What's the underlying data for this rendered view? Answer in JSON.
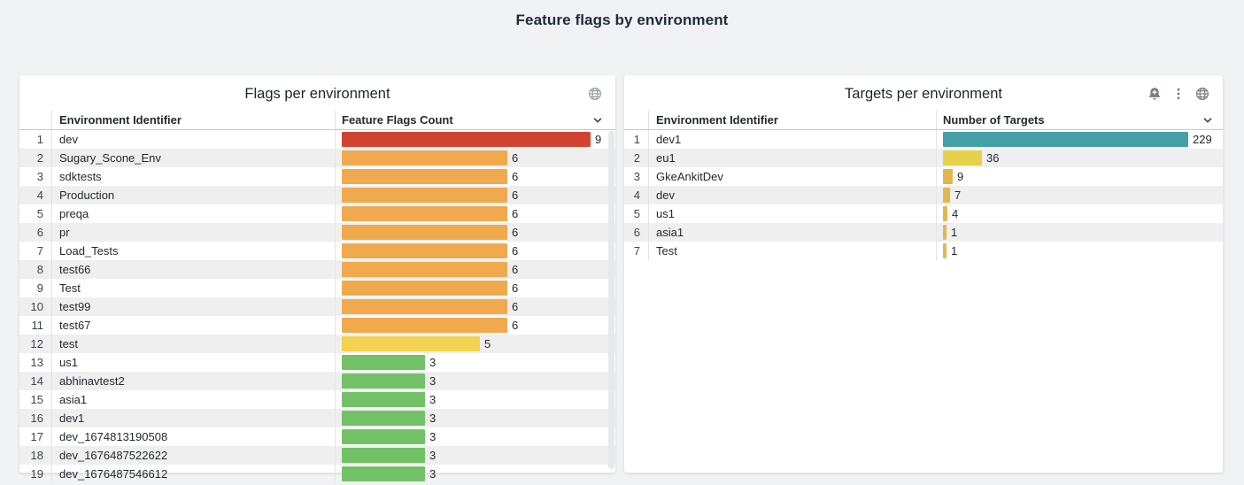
{
  "page": {
    "title": "Feature flags by environment",
    "background_color": "#f1f2f4"
  },
  "panels": [
    {
      "id": "flags",
      "title": "Flags per environment",
      "icons": [
        "globe-icon"
      ],
      "columns": [
        "Environment Identifier",
        "Feature Flags Count"
      ],
      "sort_icon": "chevron-down-icon",
      "max": 9,
      "has_scrollbar": true,
      "rows": [
        {
          "index": 1,
          "name": "dev",
          "value": 9,
          "color": "#d24431"
        },
        {
          "index": 2,
          "name": "Sugary_Scone_Env",
          "value": 6,
          "color": "#f1a94e"
        },
        {
          "index": 3,
          "name": "sdktests",
          "value": 6,
          "color": "#f1a94e"
        },
        {
          "index": 4,
          "name": "Production",
          "value": 6,
          "color": "#f1a94e"
        },
        {
          "index": 5,
          "name": "preqa",
          "value": 6,
          "color": "#f1a94e"
        },
        {
          "index": 6,
          "name": "pr",
          "value": 6,
          "color": "#f1a94e"
        },
        {
          "index": 7,
          "name": "Load_Tests",
          "value": 6,
          "color": "#f1a94e"
        },
        {
          "index": 8,
          "name": "test66",
          "value": 6,
          "color": "#f1a94e"
        },
        {
          "index": 9,
          "name": "Test",
          "value": 6,
          "color": "#f1a94e"
        },
        {
          "index": 10,
          "name": "test99",
          "value": 6,
          "color": "#f1a94e"
        },
        {
          "index": 11,
          "name": "test67",
          "value": 6,
          "color": "#f1a94e"
        },
        {
          "index": 12,
          "name": "test",
          "value": 5,
          "color": "#f3d24f"
        },
        {
          "index": 13,
          "name": "us1",
          "value": 3,
          "color": "#73c167"
        },
        {
          "index": 14,
          "name": "abhinavtest2",
          "value": 3,
          "color": "#73c167"
        },
        {
          "index": 15,
          "name": "asia1",
          "value": 3,
          "color": "#73c167"
        },
        {
          "index": 16,
          "name": "dev1",
          "value": 3,
          "color": "#73c167"
        },
        {
          "index": 17,
          "name": "dev_1674813190508",
          "value": 3,
          "color": "#73c167"
        },
        {
          "index": 18,
          "name": "dev_1676487522622",
          "value": 3,
          "color": "#73c167"
        },
        {
          "index": 19,
          "name": "dev_1676487546612",
          "value": 3,
          "color": "#73c167"
        }
      ]
    },
    {
      "id": "targets",
      "title": "Targets per environment",
      "icons": [
        "bell-plus-icon",
        "kebab-menu-icon",
        "globe-icon"
      ],
      "columns": [
        "Environment Identifier",
        "Number of Targets"
      ],
      "sort_icon": "chevron-down-icon",
      "max": 229,
      "has_scrollbar": false,
      "rows": [
        {
          "index": 1,
          "name": "dev1",
          "value": 229,
          "color": "#459fa6"
        },
        {
          "index": 2,
          "name": "eu1",
          "value": 36,
          "color": "#e6d24a"
        },
        {
          "index": 3,
          "name": "GkeAnkitDev",
          "value": 9,
          "color": "#e4b64e"
        },
        {
          "index": 4,
          "name": "dev",
          "value": 7,
          "color": "#e4b64e"
        },
        {
          "index": 5,
          "name": "us1",
          "value": 4,
          "color": "#e4b64e"
        },
        {
          "index": 6,
          "name": "asia1",
          "value": 1,
          "color": "#e4b64e"
        },
        {
          "index": 7,
          "name": "Test",
          "value": 1,
          "color": "#e4b64e"
        }
      ]
    }
  ],
  "chart_data": [
    {
      "type": "bar",
      "orientation": "horizontal",
      "title": "Flags per environment",
      "xlabel": "Feature Flags Count",
      "categories": [
        "dev",
        "Sugary_Scone_Env",
        "sdktests",
        "Production",
        "preqa",
        "pr",
        "Load_Tests",
        "test66",
        "Test",
        "test99",
        "test67",
        "test",
        "us1",
        "abhinavtest2",
        "asia1",
        "dev1",
        "dev_1674813190508",
        "dev_1676487522622",
        "dev_1676487546612"
      ],
      "values": [
        9,
        6,
        6,
        6,
        6,
        6,
        6,
        6,
        6,
        6,
        6,
        5,
        3,
        3,
        3,
        3,
        3,
        3,
        3
      ],
      "xlim": [
        0,
        9
      ]
    },
    {
      "type": "bar",
      "orientation": "horizontal",
      "title": "Targets per environment",
      "xlabel": "Number of Targets",
      "categories": [
        "dev1",
        "eu1",
        "GkeAnkitDev",
        "dev",
        "us1",
        "asia1",
        "Test"
      ],
      "values": [
        229,
        36,
        9,
        7,
        4,
        1,
        1
      ],
      "xlim": [
        0,
        229
      ]
    }
  ]
}
